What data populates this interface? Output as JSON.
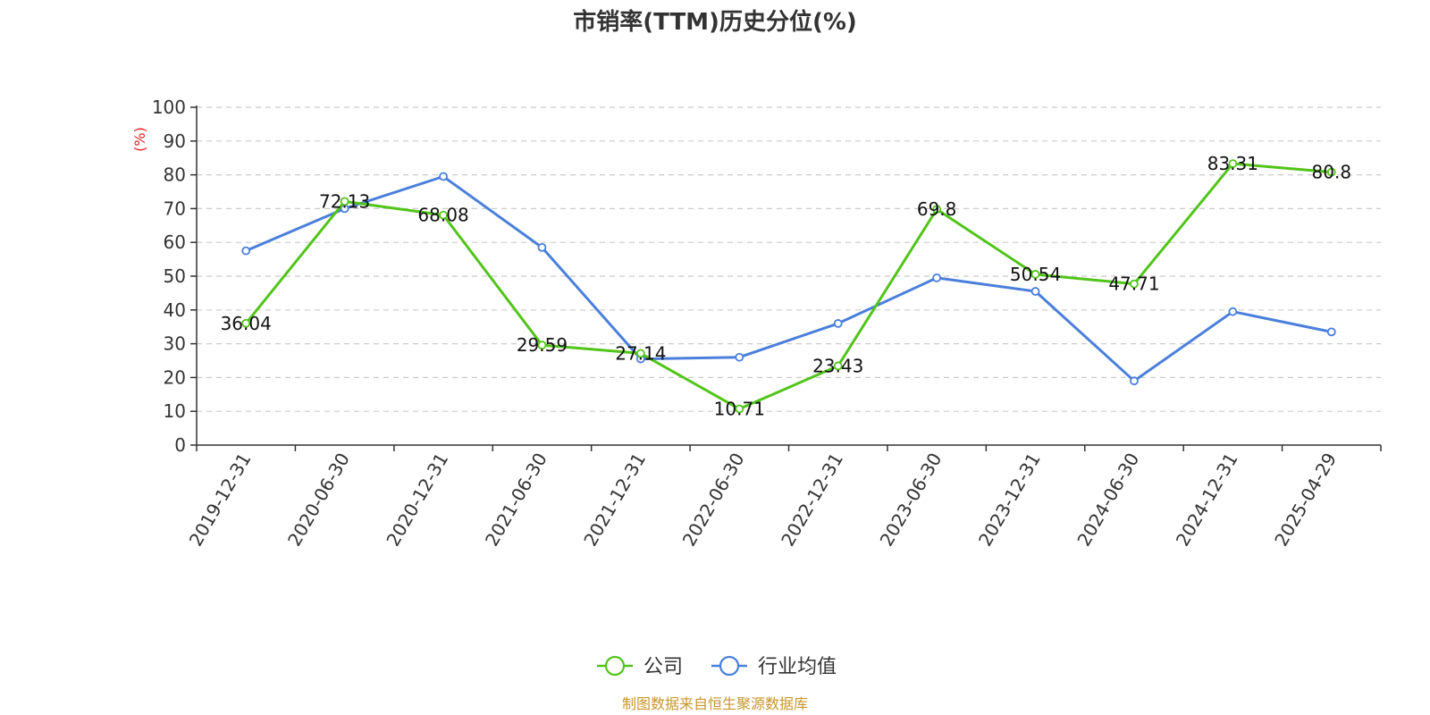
{
  "chart_data": {
    "type": "line",
    "title": "市销率(TTM)历史分位(%)",
    "ylabel": "(%)",
    "xlabel": "",
    "ylim": [
      0,
      100
    ],
    "yticks": [
      0,
      10,
      20,
      30,
      40,
      50,
      60,
      70,
      80,
      90,
      100
    ],
    "grid": true,
    "legend_position": "bottom-center",
    "categories": [
      "2019-12-31",
      "2020-06-30",
      "2020-12-31",
      "2021-06-30",
      "2021-12-31",
      "2022-06-30",
      "2022-12-31",
      "2023-06-30",
      "2023-12-31",
      "2024-06-30",
      "2024-12-31",
      "2025-04-29"
    ],
    "series": [
      {
        "name": "公司",
        "color": "#52c41a",
        "show_labels": true,
        "values": [
          36.04,
          72.13,
          68.08,
          29.59,
          27.14,
          10.71,
          23.43,
          69.8,
          50.54,
          47.71,
          83.31,
          80.8
        ]
      },
      {
        "name": "行业均值",
        "color": "#4a7fdb",
        "show_labels": false,
        "values": [
          57.5,
          70.0,
          79.5,
          58.5,
          25.5,
          26.0,
          36.0,
          49.5,
          45.5,
          19.0,
          39.5,
          33.5
        ]
      }
    ]
  },
  "footer": {
    "source": "制图数据来自恒生聚源数据库"
  }
}
